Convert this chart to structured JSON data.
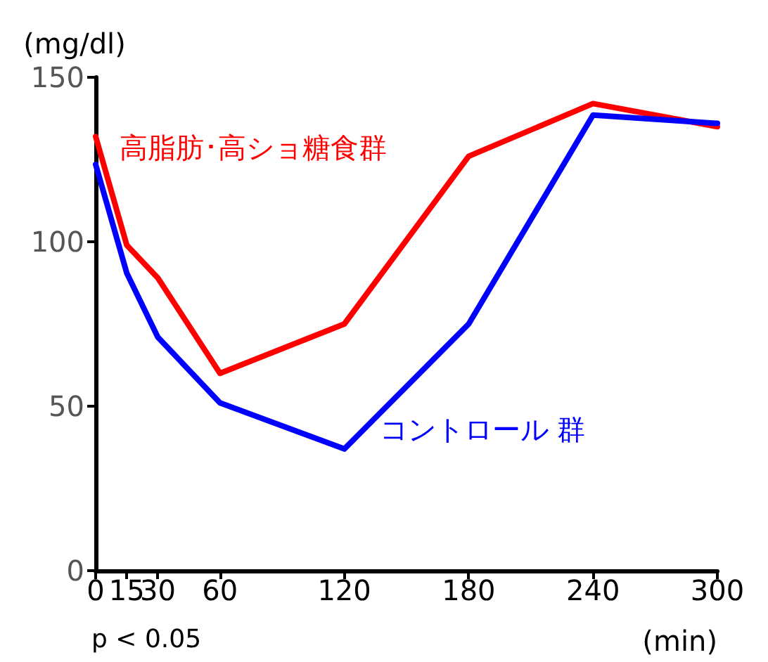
{
  "chart_data": {
    "type": "line",
    "ylabel": "(mg/dl)",
    "xlabel": "(min)",
    "x": [
      0,
      15,
      30,
      60,
      120,
      180,
      240,
      300
    ],
    "series": [
      {
        "name": "高脂肪･高ショ糖食群",
        "color": "#ff0000",
        "values": [
          132,
          99,
          89,
          60,
          75,
          126,
          142,
          135
        ]
      },
      {
        "name": "コントロール 群",
        "color": "#0000ff",
        "values": [
          123.5,
          90.5,
          71,
          51,
          37,
          75,
          138.5,
          136
        ]
      }
    ],
    "xlim": [
      0,
      300
    ],
    "xticks": [
      0,
      15,
      30,
      60,
      120,
      180,
      240,
      300
    ],
    "ylim": [
      0,
      150
    ],
    "yticks": [
      0,
      50,
      100,
      150
    ],
    "grid": false,
    "legend": false,
    "marker": "none",
    "line_style": "solid",
    "annotations": [
      "p < 0.05"
    ]
  }
}
